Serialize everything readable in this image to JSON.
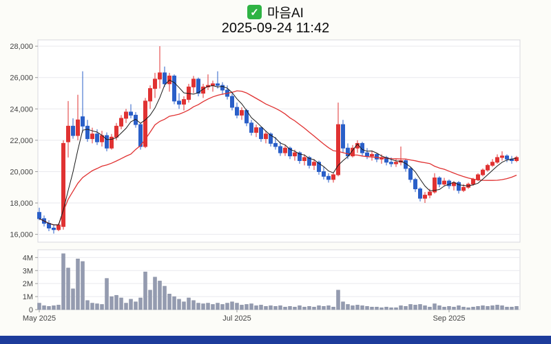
{
  "header": {
    "stock_name": "마음AI",
    "datetime": "2025-09-24 11:42",
    "check_icon": "check-icon"
  },
  "chart_data": {
    "type": "candlestick",
    "title": "마음AI",
    "subtitle": "2025-09-24 11:42",
    "price_axis": {
      "scale_min": 15500,
      "scale_max": 28400,
      "tick_values": [
        16000,
        18000,
        20000,
        22000,
        24000,
        26000,
        28000
      ],
      "tick_labels": [
        "16,000",
        "18,000",
        "20,000",
        "22,000",
        "24,000",
        "26,000",
        "28,000"
      ]
    },
    "volume_axis": {
      "scale_max": 4.6,
      "tick_values": [
        0,
        1,
        2,
        3,
        4
      ],
      "tick_labels": [
        "0",
        "1M",
        "2M",
        "3M",
        "4M"
      ]
    },
    "x_ticks": [
      {
        "label": "May 2025",
        "index": 0
      },
      {
        "label": "Jul 2025",
        "index": 41
      },
      {
        "label": "Sep 2025",
        "index": 85
      }
    ],
    "ma_short_period": 5,
    "ma_long_period": 20,
    "colors": {
      "up": "#e03232",
      "down": "#2a5fc8",
      "ma_short": "#1a1a1a",
      "ma_long": "#e03030",
      "volume": "#949bb0",
      "grid": "#e9e9ee",
      "border": "#d7d7de",
      "plot_bg": "#ffffff"
    },
    "candles_format": [
      "open",
      "high",
      "low",
      "close",
      "volume_millions"
    ],
    "candles": [
      [
        17400,
        17700,
        16900,
        17000,
        0.5
      ],
      [
        17000,
        17200,
        16500,
        16700,
        0.3
      ],
      [
        16700,
        16900,
        16200,
        16400,
        0.25
      ],
      [
        16400,
        16600,
        16050,
        16300,
        0.3
      ],
      [
        16300,
        16700,
        16200,
        16600,
        0.35
      ],
      [
        16500,
        22000,
        16300,
        21800,
        4.3
      ],
      [
        21900,
        24500,
        20900,
        22900,
        3.2
      ],
      [
        22900,
        23400,
        22100,
        22300,
        1.6
      ],
      [
        22300,
        24900,
        22000,
        23300,
        3.9
      ],
      [
        23500,
        26400,
        22500,
        22900,
        3.7
      ],
      [
        22900,
        23300,
        21900,
        22100,
        0.7
      ],
      [
        22100,
        22800,
        21800,
        22400,
        0.5
      ],
      [
        22400,
        22700,
        21700,
        21900,
        0.45
      ],
      [
        21900,
        22600,
        21600,
        22300,
        0.4
      ],
      [
        22300,
        22500,
        21300,
        21500,
        2.4
      ],
      [
        21500,
        22400,
        21400,
        22200,
        1.0
      ],
      [
        22200,
        23100,
        22000,
        22900,
        1.1
      ],
      [
        22900,
        23600,
        22700,
        23400,
        0.9
      ],
      [
        23400,
        24000,
        23100,
        23800,
        0.5
      ],
      [
        23800,
        24300,
        23400,
        23600,
        0.8
      ],
      [
        23600,
        23800,
        22800,
        23000,
        0.6
      ],
      [
        23000,
        23100,
        21400,
        21600,
        0.9
      ],
      [
        21600,
        24700,
        21500,
        24500,
        2.9
      ],
      [
        24500,
        25500,
        24000,
        25300,
        1.5
      ],
      [
        25300,
        26300,
        24700,
        25900,
        2.5
      ],
      [
        25900,
        28000,
        25300,
        26300,
        2.2
      ],
      [
        26300,
        26700,
        25400,
        25600,
        1.8
      ],
      [
        25600,
        26300,
        25100,
        26100,
        1.2
      ],
      [
        26100,
        26200,
        24300,
        24500,
        1.0
      ],
      [
        24500,
        25000,
        24000,
        24300,
        0.8
      ],
      [
        24300,
        24800,
        23900,
        24600,
        0.6
      ],
      [
        24600,
        25600,
        24400,
        25400,
        0.9
      ],
      [
        25400,
        26100,
        25000,
        25900,
        0.7
      ],
      [
        25900,
        26000,
        24800,
        25000,
        0.5
      ],
      [
        25000,
        25600,
        24700,
        25400,
        0.45
      ],
      [
        25400,
        26200,
        25200,
        25500,
        0.5
      ],
      [
        25500,
        25800,
        25100,
        25600,
        0.4
      ],
      [
        25600,
        26400,
        25300,
        25500,
        0.5
      ],
      [
        25500,
        25700,
        24900,
        25200,
        0.4
      ],
      [
        25200,
        25500,
        24600,
        24800,
        0.5
      ],
      [
        24800,
        25000,
        23900,
        24100,
        0.6
      ],
      [
        24100,
        24400,
        23400,
        23600,
        0.5
      ],
      [
        23600,
        24100,
        23300,
        23900,
        0.35
      ],
      [
        23900,
        24000,
        22900,
        23100,
        0.4
      ],
      [
        23100,
        23300,
        22300,
        22500,
        0.45
      ],
      [
        22500,
        23000,
        22200,
        22800,
        0.3
      ],
      [
        22800,
        22900,
        21900,
        22100,
        0.35
      ],
      [
        22100,
        22600,
        21800,
        22400,
        0.25
      ],
      [
        22400,
        22500,
        21600,
        21800,
        0.3
      ],
      [
        21800,
        22200,
        21400,
        21600,
        0.25
      ],
      [
        21600,
        21900,
        21000,
        21200,
        0.3
      ],
      [
        21200,
        21700,
        21000,
        21500,
        0.2
      ],
      [
        21500,
        21600,
        20800,
        21000,
        0.25
      ],
      [
        21000,
        21400,
        20700,
        21200,
        0.2
      ],
      [
        21200,
        21300,
        20500,
        20700,
        0.3
      ],
      [
        20700,
        21100,
        20400,
        20900,
        0.2
      ],
      [
        20900,
        21000,
        20200,
        20400,
        0.25
      ],
      [
        20400,
        20800,
        20100,
        20600,
        0.2
      ],
      [
        20600,
        20700,
        19800,
        20000,
        0.3
      ],
      [
        20000,
        20300,
        19500,
        19700,
        0.25
      ],
      [
        19700,
        19900,
        19300,
        19500,
        0.3
      ],
      [
        19500,
        19900,
        19300,
        19800,
        0.2
      ],
      [
        19800,
        24400,
        19700,
        23000,
        1.5
      ],
      [
        23000,
        23300,
        21200,
        21500,
        0.6
      ],
      [
        21500,
        21800,
        20800,
        21000,
        0.4
      ],
      [
        21000,
        21700,
        20900,
        21500,
        0.3
      ],
      [
        21500,
        22000,
        21200,
        21800,
        0.35
      ],
      [
        21800,
        21900,
        21000,
        21200,
        0.3
      ],
      [
        21200,
        21500,
        20800,
        21000,
        0.25
      ],
      [
        21000,
        21300,
        20700,
        21100,
        0.2
      ],
      [
        21100,
        21200,
        20600,
        20800,
        0.2
      ],
      [
        20800,
        21100,
        20500,
        20900,
        0.15
      ],
      [
        20900,
        21000,
        20400,
        20600,
        0.2
      ],
      [
        20600,
        20900,
        20300,
        20500,
        0.15
      ],
      [
        20500,
        20800,
        20300,
        20600,
        0.15
      ],
      [
        20600,
        21600,
        20400,
        20700,
        0.3
      ],
      [
        20700,
        20800,
        20000,
        20200,
        0.25
      ],
      [
        20200,
        20300,
        19300,
        19500,
        0.4
      ],
      [
        19500,
        19600,
        18700,
        18900,
        0.35
      ],
      [
        18900,
        19000,
        18100,
        18300,
        0.4
      ],
      [
        18300,
        18700,
        18000,
        18500,
        0.3
      ],
      [
        18500,
        18900,
        18300,
        18700,
        0.2
      ],
      [
        18700,
        19900,
        18600,
        19600,
        0.45
      ],
      [
        19600,
        19700,
        19000,
        19200,
        0.3
      ],
      [
        19200,
        19600,
        19100,
        19400,
        0.2
      ],
      [
        19400,
        19500,
        18900,
        19100,
        0.25
      ],
      [
        19100,
        19400,
        18800,
        19300,
        0.2
      ],
      [
        19300,
        19400,
        18600,
        18800,
        0.3
      ],
      [
        18800,
        19200,
        18700,
        19000,
        0.2
      ],
      [
        19000,
        19300,
        18900,
        19200,
        0.15
      ],
      [
        19200,
        19600,
        19100,
        19500,
        0.2
      ],
      [
        19500,
        19900,
        19400,
        19800,
        0.25
      ],
      [
        19800,
        20200,
        19700,
        20100,
        0.3
      ],
      [
        20100,
        20500,
        20000,
        20400,
        0.25
      ],
      [
        20400,
        20800,
        20300,
        20600,
        0.3
      ],
      [
        20600,
        21100,
        20500,
        20900,
        0.35
      ],
      [
        20900,
        21300,
        20700,
        21000,
        0.3
      ],
      [
        21000,
        21100,
        20600,
        20800,
        0.2
      ],
      [
        20800,
        21000,
        20500,
        20700,
        0.2
      ],
      [
        20700,
        21000,
        20600,
        20900,
        0.25
      ]
    ]
  }
}
